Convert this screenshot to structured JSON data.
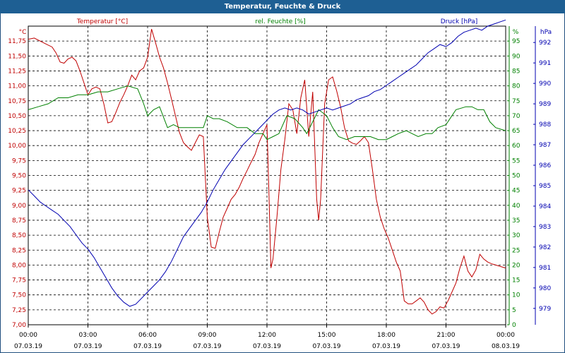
{
  "chart_data": {
    "type": "line",
    "title": "Temperatur, Feuchte & Druck",
    "x_ticks": [
      "00:00",
      "03:00",
      "06:00",
      "09:00",
      "12:00",
      "15:00",
      "18:00",
      "21:00",
      "00:00"
    ],
    "x_dates": [
      "07.03.19",
      "07.03.19",
      "07.03.19",
      "07.03.19",
      "07.03.19",
      "07.03.19",
      "07.03.19",
      "07.03.19",
      "08.03.19"
    ],
    "axes": {
      "temperature": {
        "label": "Temperatur [°C]",
        "unit": "°C",
        "range": [
          7.0,
          12.0
        ],
        "step": 0.25,
        "color": "#c00000"
      },
      "humidity": {
        "label": "rel. Feuchte [%]",
        "unit": "%",
        "range": [
          0,
          100
        ],
        "step": 5,
        "color": "#008000"
      },
      "pressure": {
        "label": "Druck [hPa]",
        "unit": "hPa",
        "range": [
          978.2,
          992.8
        ],
        "ticks": [
          979,
          980,
          981,
          982,
          983,
          984,
          985,
          986,
          987,
          988,
          989,
          990,
          991,
          992
        ],
        "color": "#0000b0"
      }
    },
    "series": [
      {
        "name": "Temperatur",
        "axis": "temperature",
        "x": [
          0,
          0.3,
          0.6,
          0.9,
          1.2,
          1.4,
          1.6,
          1.8,
          2.0,
          2.2,
          2.4,
          2.6,
          2.8,
          3.0,
          3.2,
          3.4,
          3.6,
          3.8,
          4.0,
          4.2,
          4.4,
          4.6,
          4.8,
          5.0,
          5.2,
          5.4,
          5.6,
          5.8,
          6.0,
          6.2,
          6.4,
          6.6,
          6.8,
          7.0,
          7.2,
          7.4,
          7.6,
          7.8,
          8.0,
          8.2,
          8.4,
          8.6,
          8.8,
          9.0,
          9.2,
          9.4,
          9.6,
          9.8,
          10.0,
          10.2,
          10.4,
          10.6,
          10.8,
          11.0,
          11.2,
          11.4,
          11.6,
          11.8,
          12.0,
          12.1,
          12.2,
          12.3,
          12.5,
          12.7,
          12.9,
          13.1,
          13.3,
          13.5,
          13.7,
          13.9,
          14.1,
          14.3,
          14.5,
          14.6,
          14.7,
          14.9,
          15.1,
          15.3,
          15.5,
          15.7,
          15.9,
          16.1,
          16.3,
          16.5,
          16.7,
          16.9,
          17.1,
          17.3,
          17.5,
          17.7,
          17.9,
          18.1,
          18.3,
          18.5,
          18.7,
          18.9,
          19.1,
          19.3,
          19.5,
          19.7,
          19.9,
          20.1,
          20.3,
          20.5,
          20.7,
          20.9,
          21.1,
          21.3,
          21.5,
          21.7,
          21.9,
          22.1,
          22.3,
          22.5,
          22.7,
          22.9,
          23.1,
          23.3,
          23.5,
          23.7,
          24.0
        ],
        "y": [
          11.78,
          11.8,
          11.75,
          11.7,
          11.65,
          11.55,
          11.4,
          11.38,
          11.45,
          11.48,
          11.42,
          11.25,
          11.05,
          10.85,
          10.95,
          10.98,
          10.95,
          10.7,
          10.38,
          10.4,
          10.55,
          10.72,
          10.85,
          11.0,
          11.18,
          11.1,
          11.25,
          11.3,
          11.48,
          11.95,
          11.72,
          11.48,
          11.3,
          11.05,
          10.78,
          10.5,
          10.22,
          10.05,
          9.98,
          9.92,
          10.05,
          10.18,
          10.15,
          8.8,
          8.3,
          8.28,
          8.55,
          8.8,
          8.95,
          9.1,
          9.18,
          9.3,
          9.45,
          9.58,
          9.72,
          9.85,
          10.05,
          10.2,
          10.35,
          9.2,
          7.95,
          8.1,
          8.8,
          9.6,
          10.1,
          10.7,
          10.6,
          10.2,
          10.8,
          11.1,
          10.15,
          10.9,
          9.1,
          8.75,
          9.1,
          10.7,
          11.1,
          11.15,
          10.92,
          10.65,
          10.3,
          10.08,
          10.04,
          10.02,
          10.08,
          10.15,
          10.05,
          9.6,
          9.1,
          8.8,
          8.6,
          8.45,
          8.25,
          8.05,
          7.9,
          7.4,
          7.35,
          7.35,
          7.4,
          7.45,
          7.38,
          7.25,
          7.18,
          7.22,
          7.3,
          7.28,
          7.4,
          7.55,
          7.7,
          7.95,
          8.15,
          7.9,
          7.8,
          7.92,
          8.18,
          8.1,
          8.05,
          8.02,
          8.0,
          7.98,
          7.95
        ],
        "color": "#c00000"
      },
      {
        "name": "rel. Feuchte",
        "axis": "humidity",
        "x": [
          0,
          0.5,
          1.0,
          1.5,
          2.0,
          2.5,
          3.0,
          3.5,
          4.0,
          4.5,
          5.0,
          5.5,
          5.8,
          6.0,
          6.3,
          6.6,
          7.0,
          7.3,
          7.6,
          8.0,
          8.4,
          8.8,
          9.0,
          9.3,
          9.6,
          10.0,
          10.5,
          11.0,
          11.4,
          11.8,
          12.0,
          12.3,
          12.6,
          13.0,
          13.4,
          13.8,
          14.0,
          14.3,
          14.6,
          15.0,
          15.3,
          15.6,
          16.0,
          16.4,
          16.8,
          17.2,
          17.6,
          18.0,
          18.3,
          18.6,
          19.0,
          19.3,
          19.6,
          20.0,
          20.3,
          20.6,
          21.0,
          21.5,
          22.0,
          22.3,
          22.6,
          22.9,
          23.2,
          23.5,
          24.0
        ],
        "y": [
          72,
          73,
          74,
          76,
          76,
          77,
          77,
          78,
          78,
          79,
          80,
          79,
          74,
          70,
          72,
          73,
          66,
          67,
          66,
          66,
          66,
          66,
          70,
          69,
          69,
          68,
          66,
          66,
          64,
          64,
          62,
          63,
          64,
          70,
          69,
          66,
          64,
          68,
          72,
          70,
          66,
          63,
          62,
          63,
          63,
          63,
          62,
          62,
          63,
          64,
          65,
          64,
          63,
          64,
          64,
          66,
          67,
          72,
          73,
          73,
          72,
          72,
          68,
          66,
          65
        ],
        "color": "#008000"
      },
      {
        "name": "Druck",
        "axis": "pressure",
        "x": [
          0,
          0.3,
          0.6,
          0.9,
          1.2,
          1.5,
          1.8,
          2.1,
          2.4,
          2.7,
          3.0,
          3.3,
          3.6,
          3.9,
          4.2,
          4.5,
          4.8,
          5.1,
          5.4,
          5.7,
          6.0,
          6.3,
          6.6,
          6.9,
          7.2,
          7.5,
          7.8,
          8.1,
          8.4,
          8.7,
          9.0,
          9.3,
          9.6,
          9.9,
          10.2,
          10.5,
          10.8,
          11.1,
          11.4,
          11.7,
          12.0,
          12.3,
          12.6,
          12.9,
          13.2,
          13.5,
          13.8,
          14.1,
          14.4,
          14.7,
          15.0,
          15.3,
          15.6,
          15.9,
          16.2,
          16.5,
          16.8,
          17.1,
          17.4,
          17.7,
          18.0,
          18.3,
          18.6,
          18.9,
          19.2,
          19.5,
          19.8,
          20.1,
          20.4,
          20.7,
          21.0,
          21.3,
          21.6,
          21.9,
          22.2,
          22.5,
          22.8,
          23.1,
          23.4,
          23.7,
          24.0
        ],
        "y": [
          984.8,
          984.5,
          984.2,
          984.0,
          983.8,
          983.6,
          983.3,
          983.0,
          982.6,
          982.2,
          981.9,
          981.5,
          981.0,
          980.5,
          980.0,
          979.6,
          979.3,
          979.1,
          979.2,
          979.5,
          979.8,
          980.1,
          980.4,
          980.8,
          981.3,
          981.9,
          982.5,
          982.9,
          983.3,
          983.7,
          984.2,
          984.8,
          985.3,
          985.8,
          986.2,
          986.6,
          987.0,
          987.3,
          987.6,
          987.9,
          988.2,
          988.5,
          988.7,
          988.8,
          988.7,
          988.8,
          988.7,
          988.5,
          988.6,
          988.7,
          988.8,
          988.7,
          988.8,
          988.9,
          989.0,
          989.2,
          989.3,
          989.4,
          989.6,
          989.7,
          989.9,
          990.1,
          990.3,
          990.5,
          990.7,
          990.9,
          991.2,
          991.5,
          991.7,
          991.9,
          991.8,
          992.0,
          992.3,
          992.5,
          992.6,
          992.7,
          992.6,
          992.8,
          992.9,
          993.0,
          993.1
        ],
        "color": "#0000b0"
      }
    ]
  }
}
